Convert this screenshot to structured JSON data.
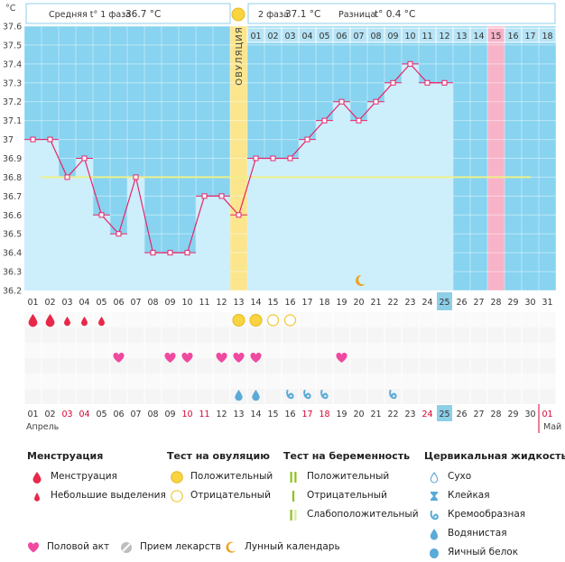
{
  "header": {
    "phase1_label": "Средняя t° 1 фаза",
    "phase1_value": "36.7 °C",
    "phase2_label": "2 фаза",
    "phase2_value": "37.1 °C",
    "diff_label": "Разница",
    "diff_value": "t° 0.4 °C",
    "unit_label": "°C",
    "ovulation_label": "ОВУЛЯЦИЯ"
  },
  "colors": {
    "sky": "#87d3f0",
    "bar": "#cdeefb",
    "line": "#e8246a",
    "ovulation_strip": "#fbe58d",
    "highlight_day": "#f7b3c8",
    "coverline": "#eef08a",
    "weekend_red": "#d8002f"
  },
  "chart_data": {
    "type": "line",
    "title": "",
    "xlabel": "",
    "ylabel": "°C",
    "ylim": [
      36.2,
      37.6
    ],
    "yticks": [
      "37.6",
      "37.5",
      "37.4",
      "37.3",
      "37.2",
      "37.1",
      "37",
      "36.9",
      "36.8",
      "36.7",
      "36.6",
      "36.5",
      "36.4",
      "36.3",
      "36.2"
    ],
    "x": [
      "01",
      "02",
      "03",
      "04",
      "05",
      "06",
      "07",
      "08",
      "09",
      "10",
      "11",
      "12",
      "13",
      "14",
      "15",
      "16",
      "17",
      "18",
      "19",
      "20",
      "21",
      "22",
      "23",
      "24",
      "25"
    ],
    "series": [
      {
        "values": [
          37.0,
          37.0,
          36.8,
          36.9,
          36.6,
          36.5,
          36.8,
          36.4,
          36.4,
          36.4,
          36.7,
          36.7,
          36.6,
          36.9,
          36.9,
          36.9,
          37.0,
          37.1,
          37.2,
          37.1,
          37.2,
          37.3,
          37.4,
          37.3,
          37.3
        ]
      }
    ],
    "coverline": 36.8,
    "ovulation_day": "13",
    "highlighted_cycle_day": "28",
    "top_cycle_days": [
      "01",
      "02",
      "03",
      "04",
      "05",
      "06",
      "07",
      "08",
      "09",
      "10",
      "11",
      "12",
      "13",
      "14",
      "15",
      "16",
      "17",
      "18"
    ],
    "dates": [
      "01",
      "02",
      "03",
      "04",
      "05",
      "06",
      "07",
      "08",
      "09",
      "10",
      "11",
      "12",
      "13",
      "14",
      "15",
      "16",
      "17",
      "18",
      "19",
      "20",
      "21",
      "22",
      "23",
      "24",
      "25",
      "26",
      "27",
      "28",
      "29",
      "30",
      "31"
    ],
    "bottom_dates": [
      "01",
      "02",
      "03",
      "04",
      "05",
      "06",
      "07",
      "08",
      "09",
      "10",
      "11",
      "12",
      "13",
      "14",
      "15",
      "16",
      "17",
      "18",
      "19",
      "20",
      "21",
      "22",
      "23",
      "24",
      "25",
      "26",
      "27",
      "28",
      "29",
      "30",
      "01"
    ],
    "red_bottom_dates": [
      "03",
      "04",
      "10",
      "11",
      "17",
      "18",
      "24",
      "01"
    ],
    "today": "25",
    "months": [
      "Апрель",
      "Май"
    ],
    "moon_day": "20",
    "menstruation": [
      {
        "day": "01",
        "kind": "large"
      },
      {
        "day": "02",
        "kind": "large"
      },
      {
        "day": "03",
        "kind": "small"
      },
      {
        "day": "04",
        "kind": "small"
      },
      {
        "day": "05",
        "kind": "small"
      }
    ],
    "ovulation_tests": [
      {
        "day": "13",
        "result": "positive"
      },
      {
        "day": "14",
        "result": "positive"
      },
      {
        "day": "15",
        "result": "negative"
      },
      {
        "day": "16",
        "result": "negative"
      }
    ],
    "intercourse_days": [
      "06",
      "09",
      "10",
      "12",
      "13",
      "14",
      "19"
    ],
    "cervical_fluid": [
      {
        "day": "13",
        "kind": "watery"
      },
      {
        "day": "14",
        "kind": "watery"
      },
      {
        "day": "16",
        "kind": "creamy"
      },
      {
        "day": "17",
        "kind": "creamy"
      },
      {
        "day": "18",
        "kind": "creamy"
      },
      {
        "day": "22",
        "kind": "creamy"
      }
    ]
  },
  "legend": {
    "menstruation": {
      "title": "Менструация",
      "items": [
        "Менструация",
        "Небольшие выделения"
      ]
    },
    "ovulation_test": {
      "title": "Тест на овуляцию",
      "items": [
        "Положительный",
        "Отрицательный"
      ]
    },
    "pregnancy_test": {
      "title": "Тест на беременность",
      "items": [
        "Положительный",
        "Отрицательный",
        "Слабоположительный"
      ]
    },
    "cervical_fluid": {
      "title": "Цервикальная жидкость",
      "items": [
        "Сухо",
        "Клейкая",
        "Кремообразная",
        "Водянистая",
        "Яичный белок"
      ]
    },
    "intercourse": "Половой акт",
    "medication": "Прием лекарств",
    "lunar": "Лунный календарь"
  }
}
